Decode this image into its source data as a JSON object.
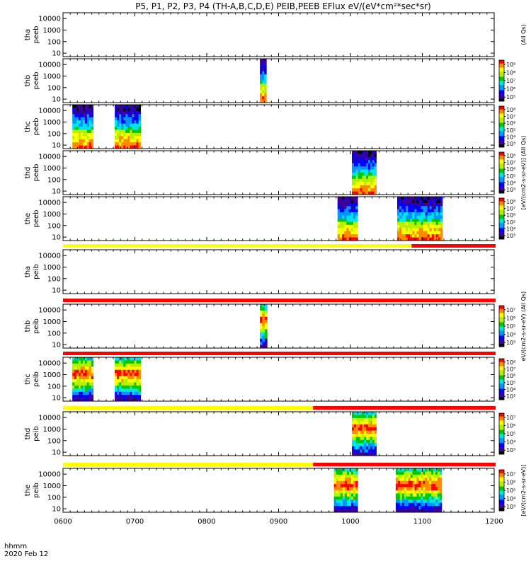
{
  "title": "P5, P1, P2, P3, P4 (TH-A,B,C,D,E) PEIB,PEEB EFlux eV/(eV*cm²*sec*sr)",
  "footer": {
    "axis_label": "hhmm",
    "date": "2020 Feb 12"
  },
  "colorbar_units": {
    "electron_top": "(All Qs)",
    "electron": "[eV/(cm2-s-sr-eV)] (All Qs)",
    "ion_top": "eV/(cm2-s-sr-eV) (All Qs)",
    "ion": "[eV/(cm2-s-sr-eV)]"
  },
  "colors": {
    "bar_yellow": "#ffff00",
    "bar_red": "#ff0000",
    "colormap": [
      "#000000",
      "#3c00a0",
      "#0000ff",
      "#0096ff",
      "#00e6e6",
      "#00c800",
      "#b4f000",
      "#ffff00",
      "#ff8c00",
      "#ff0000"
    ]
  },
  "chart_data": {
    "type": "heatmap",
    "x_range": [
      600,
      1200
    ],
    "x_ticks": [
      600,
      700,
      800,
      900,
      1000,
      1100,
      1200
    ],
    "x_tick_labels": [
      "0600",
      "0700",
      "0800",
      "0900",
      "1000",
      "1100",
      "1200"
    ],
    "x_unit": "hhmm",
    "y_scale": "log",
    "y_ticks": [
      10,
      100,
      1000,
      10000
    ],
    "y_tick_labels": [
      "10",
      "100",
      "1000",
      "10000"
    ],
    "panels": [
      {
        "label": "tha\npeeb",
        "colorbar": null,
        "intervals": [],
        "spectrum": "electron",
        "bar_above": null
      },
      {
        "label": "thb\npeeb",
        "colorbar": {
          "ticks": [
            "10⁵",
            "10⁶",
            "10⁷",
            "10⁸",
            "10⁹"
          ],
          "decades": [
            5,
            9
          ]
        },
        "intervals": [
          [
            874,
            883
          ]
        ],
        "spectrum": "electron",
        "bar_above": null
      },
      {
        "label": "thc\npeeb",
        "colorbar": {
          "ticks": [
            "10³",
            "10⁴",
            "10⁵",
            "10⁶",
            "10⁷",
            "10⁸"
          ],
          "decades": [
            3,
            8
          ]
        },
        "intervals": [
          [
            613,
            642
          ],
          [
            672,
            708
          ]
        ],
        "spectrum": "electron",
        "bar_above": null
      },
      {
        "label": "thd\npeeb",
        "colorbar": {
          "ticks": [
            "10³",
            "10⁴",
            "10⁵",
            "10⁶",
            "10⁷",
            "10⁸"
          ],
          "decades": [
            3,
            8
          ]
        },
        "intervals": [
          [
            1002,
            1036
          ]
        ],
        "spectrum": "electron",
        "bar_above": null
      },
      {
        "label": "the\npeeb",
        "colorbar": {
          "ticks": [
            "10³",
            "10⁴",
            "10⁵",
            "10⁶",
            "10⁷",
            "10⁸"
          ],
          "decades": [
            3,
            8
          ]
        },
        "intervals": [
          [
            982,
            1010
          ],
          [
            1065,
            1128
          ]
        ],
        "spectrum": "electron",
        "bar_above": null
      },
      {
        "label": "tha\npeib",
        "colorbar": null,
        "intervals": [],
        "spectrum": "ion",
        "bar_above": {
          "yellow_until": 1085
        }
      },
      {
        "label": "thb\npeib",
        "colorbar": {
          "ticks": [
            "10³",
            "10⁴",
            "10⁵",
            "10⁶",
            "10⁷"
          ],
          "decades": [
            3,
            7
          ]
        },
        "intervals": [
          [
            874,
            884
          ]
        ],
        "spectrum": "ion",
        "bar_above": {
          "yellow_until": 600
        }
      },
      {
        "label": "thc\npeib",
        "colorbar": {
          "ticks": [
            "10³",
            "10⁴",
            "10⁵",
            "10⁶",
            "10⁷",
            "10⁸"
          ],
          "decades": [
            3,
            8
          ]
        },
        "intervals": [
          [
            613,
            642
          ],
          [
            672,
            708
          ]
        ],
        "spectrum": "ion",
        "bar_above": {
          "yellow_until": 600
        }
      },
      {
        "label": "thd\npeib",
        "colorbar": {
          "ticks": [
            "10³",
            "10⁴",
            "10⁵",
            "10⁶",
            "10⁷"
          ],
          "decades": [
            3,
            7
          ]
        },
        "intervals": [
          [
            1002,
            1036
          ]
        ],
        "spectrum": "ion",
        "bar_above": {
          "yellow_until": 948
        }
      },
      {
        "label": "the\npeib",
        "colorbar": {
          "ticks": [
            "10³",
            "10⁴",
            "10⁵",
            "10⁶",
            "10⁷"
          ],
          "decades": [
            3,
            7
          ]
        },
        "intervals": [
          [
            977,
            1010
          ],
          [
            1063,
            1127
          ]
        ],
        "spectrum": "ion",
        "bar_above": {
          "yellow_until": 948
        }
      }
    ]
  }
}
